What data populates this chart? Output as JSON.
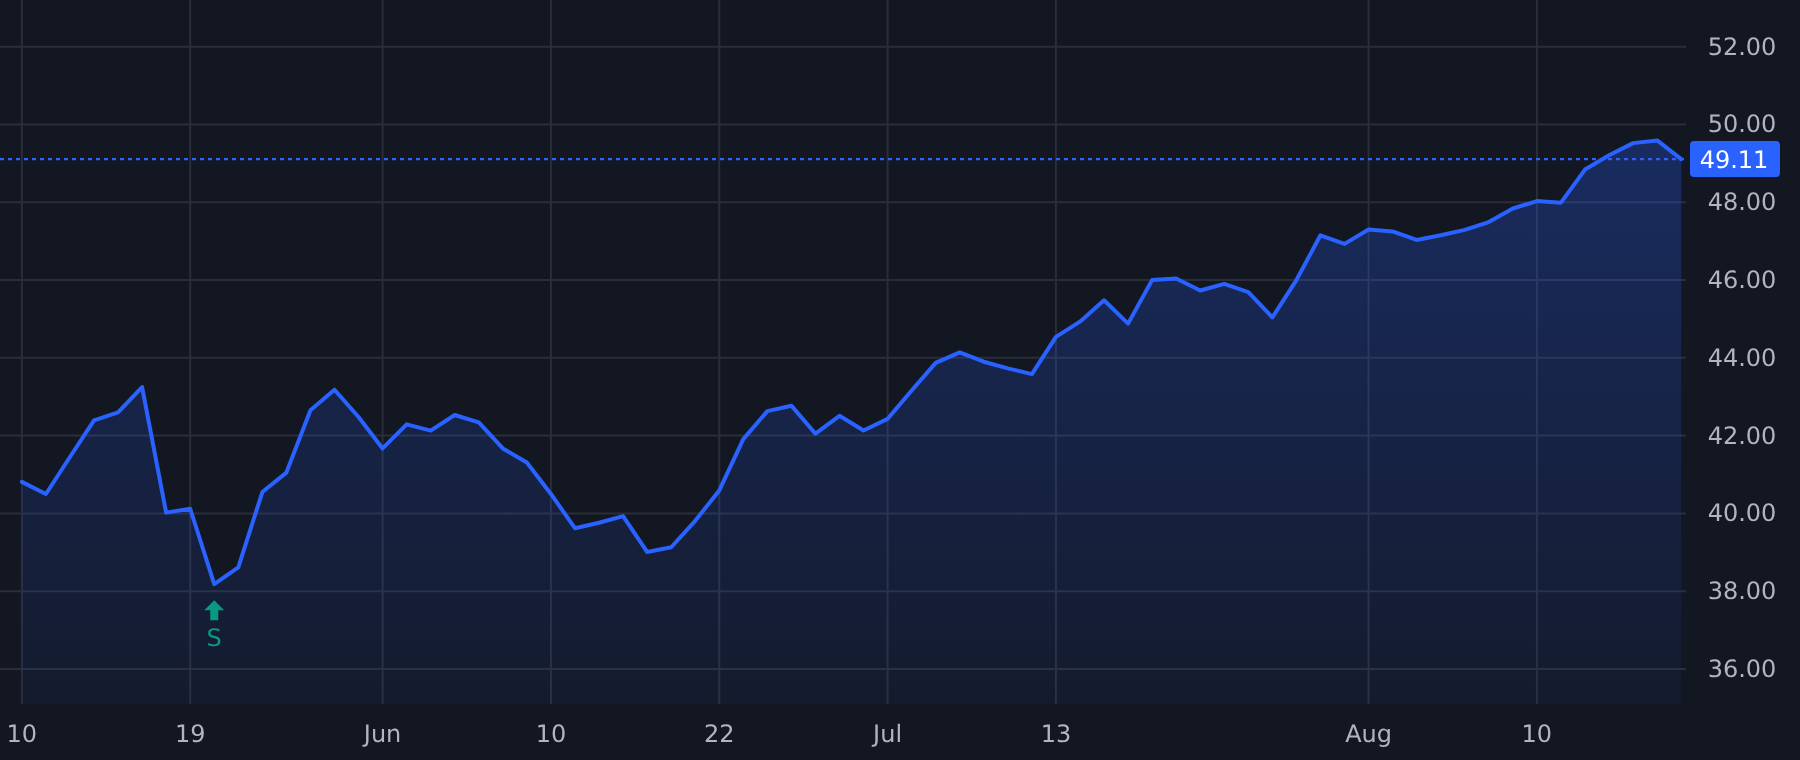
{
  "chart_data": {
    "type": "area",
    "categories": [
      "10",
      null,
      null,
      null,
      null,
      null,
      null,
      "19",
      null,
      null,
      null,
      null,
      null,
      null,
      null,
      "Jun",
      null,
      null,
      null,
      null,
      null,
      null,
      "10",
      null,
      null,
      null,
      null,
      null,
      null,
      "22",
      null,
      null,
      null,
      null,
      null,
      null,
      "Jul",
      null,
      null,
      null,
      null,
      null,
      null,
      "13",
      null,
      null,
      null,
      null,
      null,
      null,
      null,
      null,
      null,
      null,
      null,
      null,
      "Aug",
      null,
      null,
      null,
      null,
      null,
      null,
      "10",
      null,
      null,
      null,
      null,
      null,
      null
    ],
    "series": [
      {
        "color": "#2962ff",
        "values": [
          40.81,
          40.5,
          41.45,
          42.39,
          42.6,
          43.25,
          40.02,
          40.12,
          38.18,
          38.61,
          40.55,
          41.05,
          42.65,
          43.18,
          42.48,
          41.67,
          42.29,
          42.13,
          42.53,
          42.34,
          41.67,
          41.31,
          40.5,
          39.62,
          39.76,
          39.93,
          39.01,
          39.13,
          39.81,
          40.59,
          41.91,
          42.63,
          42.77,
          42.05,
          42.51,
          42.13,
          42.43,
          43.16,
          43.87,
          44.14,
          43.9,
          43.73,
          43.58,
          44.54,
          44.93,
          45.48,
          44.88,
          46.0,
          46.04,
          45.73,
          45.9,
          45.69,
          45.04,
          46.0,
          47.15,
          46.93,
          47.3,
          47.25,
          47.03,
          47.15,
          47.29,
          47.49,
          47.84,
          48.03,
          47.99,
          48.84,
          49.21,
          49.52,
          49.59,
          49.11
        ]
      }
    ],
    "ylim": [
      35.1,
      53.2
    ],
    "yticks": [
      {
        "value": 36,
        "label": "36.00"
      },
      {
        "value": 38,
        "label": "38.00"
      },
      {
        "value": 40,
        "label": "40.00"
      },
      {
        "value": 42,
        "label": "42.00"
      },
      {
        "value": 44,
        "label": "44.00"
      },
      {
        "value": 46,
        "label": "46.00"
      },
      {
        "value": 48,
        "label": "48.00"
      },
      {
        "value": 50,
        "label": "50.00"
      },
      {
        "value": 52,
        "label": "52.00"
      }
    ],
    "grid": true,
    "ref_lines": [
      {
        "axis": "y",
        "value": 49.11,
        "label": "49.11",
        "color": "#2962ff",
        "line_style": "dotted"
      }
    ],
    "annotations": [
      {
        "text": "S",
        "y": 38.18
      }
    ]
  }
}
